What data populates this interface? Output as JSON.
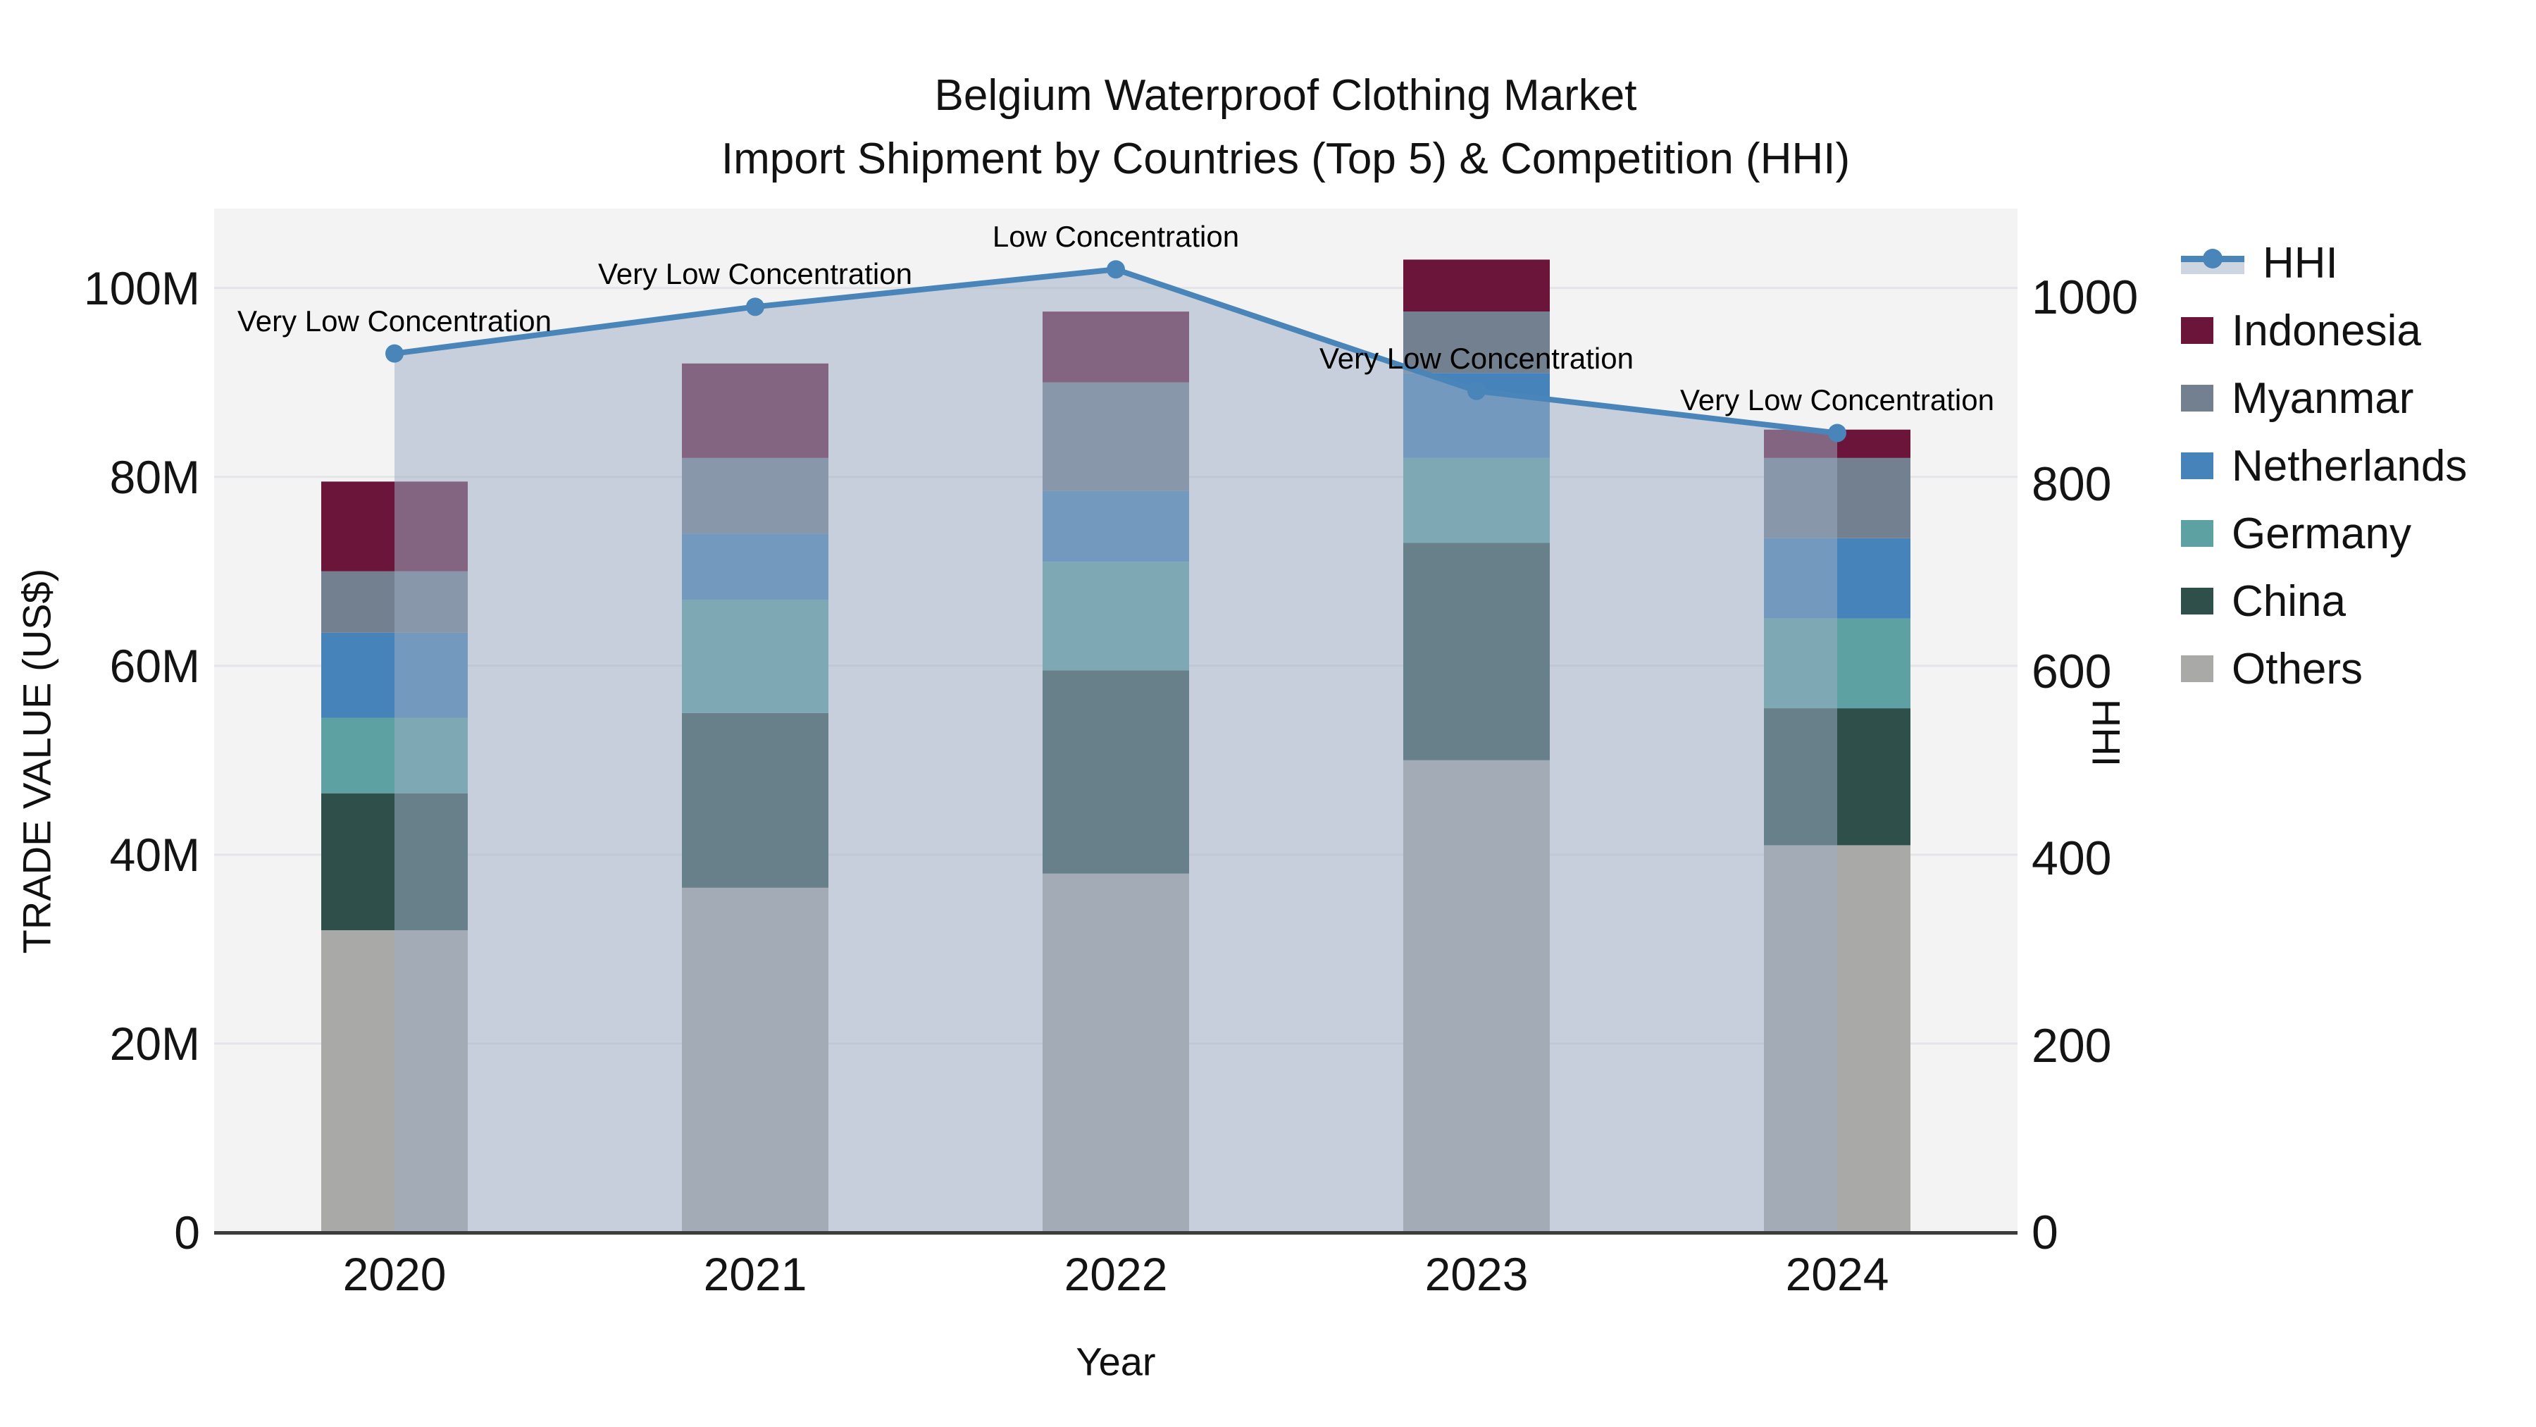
{
  "title": {
    "line1": "Belgium Waterproof Clothing Market",
    "line2": "Import Shipment by Countries (Top 5) & Competition (HHI)"
  },
  "chart_data": {
    "type": "bar+line",
    "subtype": "stacked-bars-with-secondary-axis-line-and-area",
    "x": [
      2020,
      2021,
      2022,
      2023,
      2024
    ],
    "x_axis": {
      "title": "Year",
      "labels": [
        "2020",
        "2021",
        "2022",
        "2023",
        "2024"
      ]
    },
    "left_axis": {
      "title": "TRADE VALUE (US$)",
      "ticks": [
        "0",
        "20M",
        "40M",
        "60M",
        "80M",
        "100M"
      ],
      "tick_values": [
        0,
        20,
        40,
        60,
        80,
        100
      ],
      "unit": "million US$",
      "ymax": 108.4
    },
    "right_axis": {
      "title": "HHI",
      "ticks": [
        "0",
        "200",
        "400",
        "600",
        "800",
        "1000"
      ],
      "tick_values": [
        0,
        200,
        400,
        600,
        800,
        1000
      ],
      "ymax": 1095
    },
    "stack_order_bottom_to_top": [
      "Others",
      "China",
      "Germany",
      "Netherlands",
      "Myanmar",
      "Indonesia"
    ],
    "series": [
      {
        "name": "Indonesia",
        "color": "#6a1539",
        "values": [
          9.5,
          10,
          7.5,
          5.5,
          3
        ]
      },
      {
        "name": "Myanmar",
        "color": "#72808f",
        "values": [
          6.5,
          8,
          11.5,
          6.5,
          8.5
        ]
      },
      {
        "name": "Netherlands",
        "color": "#4583ba",
        "values": [
          9,
          7,
          7.5,
          9,
          8.5
        ]
      },
      {
        "name": "Germany",
        "color": "#5da1a2",
        "values": [
          8,
          12,
          11.5,
          9,
          9.5
        ]
      },
      {
        "name": "China",
        "color": "#2f4f4b",
        "values": [
          14.5,
          18.5,
          21.5,
          23,
          14.5
        ]
      },
      {
        "name": "Others",
        "color": "#a9a9a7",
        "values": [
          32,
          36.5,
          38,
          50,
          41
        ]
      }
    ],
    "bar_totals": [
      79.5,
      92,
      97.5,
      103,
      85
    ],
    "line": {
      "name": "HHI",
      "color": "#4a85ba",
      "area_color": "rgba(158,175,196,0.52)",
      "legend_band_color": "#cdd5e1",
      "values": [
        940,
        990,
        1030,
        900,
        855
      ]
    },
    "annotations": [
      "Very Low Concentration",
      "Very Low Concentration",
      "Low Concentration",
      "Very Low Concentration",
      "Very Low Concentration"
    ],
    "legend": [
      "HHI",
      "Indonesia",
      "Myanmar",
      "Netherlands",
      "Germany",
      "China",
      "Others"
    ],
    "grid": "horizontal-only",
    "plot_bg": "#f3f3f4",
    "grid_color": "#e3e5e9",
    "axis_line_color": "#3c3c3c",
    "legend_position": "right"
  }
}
